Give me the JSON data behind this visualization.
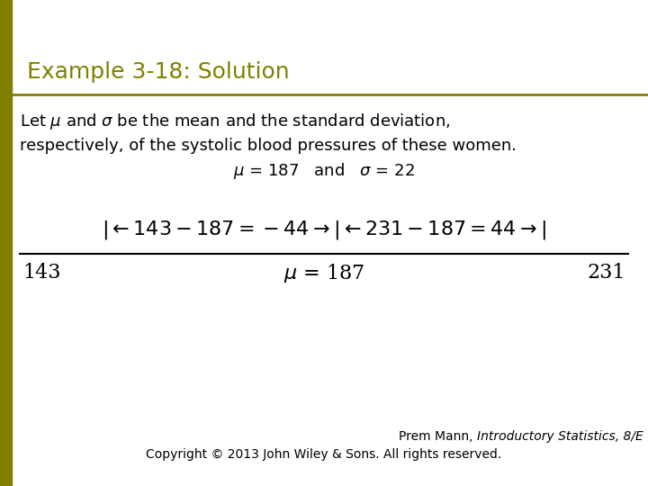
{
  "title": "Example 3-18: Solution",
  "title_color": "#808000",
  "title_fontsize": 18,
  "bg_color": "#ffffff",
  "sidebar_color": "#808000",
  "body_text_line1": "Let $\\mu$ and $\\sigma$ be the mean and the standard deviation,",
  "body_text_line2": "respectively, of the systolic blood pressures of these women.",
  "body_text_line3": "$\\mu$ = 187   and   $\\sigma$ = 22",
  "diagram_top": "$|\\leftarrow 143 - 187 = -44 \\rightarrow|\\leftarrow 231 - 187 = 44 \\rightarrow|$",
  "diagram_left": "143",
  "diagram_center": "$\\mu$ = 187",
  "diagram_right": "231",
  "footer_normal": "Prem Mann, ",
  "footer_italic": "Introductory Statistics, 8/E",
  "footer_copy": "Copyright © 2013 John Wiley & Sons. All rights reserved.",
  "text_color": "#000000",
  "body_fontsize": 13,
  "diagram_fontsize": 16,
  "footer_fontsize": 10
}
